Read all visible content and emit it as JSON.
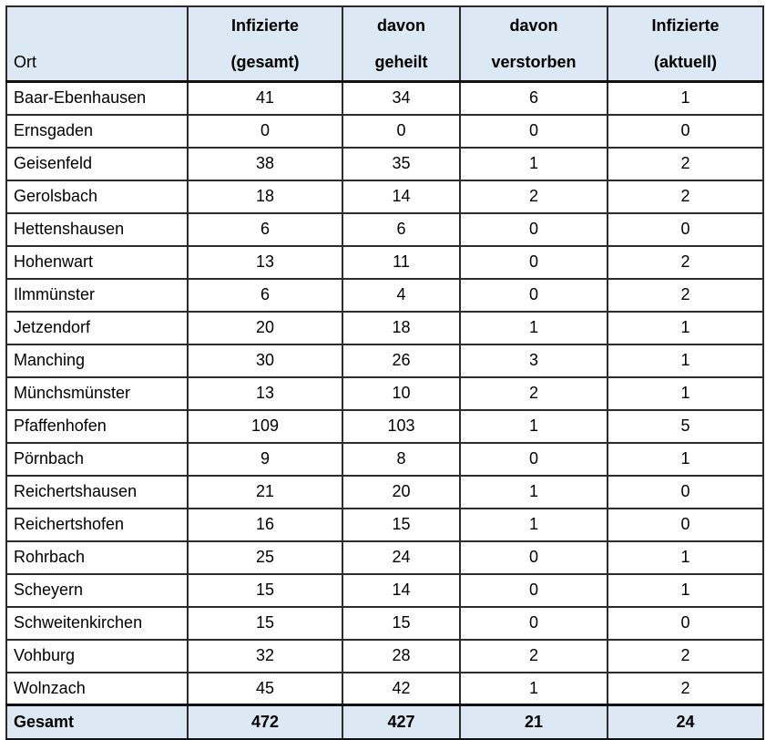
{
  "colors": {
    "header_bg": "#dce8f4",
    "border": "#2b2b2b",
    "border_heavy": "#111111",
    "text": "#000000",
    "page_bg": "#ffffff"
  },
  "table": {
    "header": {
      "ort": "Ort",
      "col2_line1": "Infizierte",
      "col2_line2": "(gesamt)",
      "col3_line1": "davon",
      "col3_line2": "geheilt",
      "col4_line1": "davon",
      "col4_line2": "verstorben",
      "col5_line1": "Infizierte",
      "col5_line2": "(aktuell)"
    },
    "rows": [
      {
        "ort": "Baar-Ebenhausen",
        "values": [
          "41",
          "34",
          "6",
          "1"
        ]
      },
      {
        "ort": "Ernsgaden",
        "values": [
          "0",
          "0",
          "0",
          "0"
        ]
      },
      {
        "ort": "Geisenfeld",
        "values": [
          "38",
          "35",
          "1",
          "2"
        ]
      },
      {
        "ort": "Gerolsbach",
        "values": [
          "18",
          "14",
          "2",
          "2"
        ]
      },
      {
        "ort": "Hettenshausen",
        "values": [
          "6",
          "6",
          "0",
          "0"
        ]
      },
      {
        "ort": "Hohenwart",
        "values": [
          "13",
          "11",
          "0",
          "2"
        ]
      },
      {
        "ort": "Ilmmünster",
        "values": [
          "6",
          "4",
          "0",
          "2"
        ]
      },
      {
        "ort": "Jetzendorf",
        "values": [
          "20",
          "18",
          "1",
          "1"
        ]
      },
      {
        "ort": "Manching",
        "values": [
          "30",
          "26",
          "3",
          "1"
        ]
      },
      {
        "ort": "Münchsmünster",
        "values": [
          "13",
          "10",
          "2",
          "1"
        ]
      },
      {
        "ort": "Pfaffenhofen",
        "values": [
          "109",
          "103",
          "1",
          "5"
        ]
      },
      {
        "ort": "Pörnbach",
        "values": [
          "9",
          "8",
          "0",
          "1"
        ]
      },
      {
        "ort": "Reichertshausen",
        "values": [
          "21",
          "20",
          "1",
          "0"
        ]
      },
      {
        "ort": "Reichertshofen",
        "values": [
          "16",
          "15",
          "1",
          "0"
        ]
      },
      {
        "ort": "Rohrbach",
        "values": [
          "25",
          "24",
          "0",
          "1"
        ]
      },
      {
        "ort": "Scheyern",
        "values": [
          "15",
          "14",
          "0",
          "1"
        ]
      },
      {
        "ort": "Schweitenkirchen",
        "values": [
          "15",
          "15",
          "0",
          "0"
        ]
      },
      {
        "ort": "Vohburg",
        "values": [
          "32",
          "28",
          "2",
          "2"
        ]
      },
      {
        "ort": "Wolnzach",
        "values": [
          "45",
          "42",
          "1",
          "2"
        ]
      }
    ],
    "total": {
      "label": "Gesamt",
      "values": [
        "472",
        "427",
        "21",
        "24"
      ]
    }
  }
}
